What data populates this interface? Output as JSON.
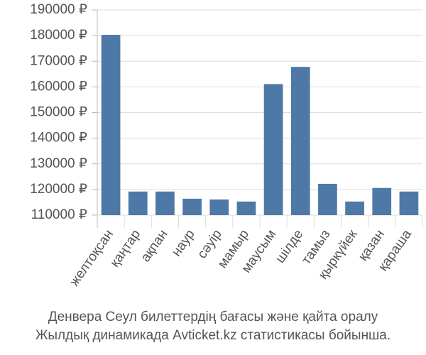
{
  "chart_data": {
    "type": "bar",
    "title": [
      "Денвера Сеул билеттердің бағасы және қайта оралу",
      "Жылдық динамикада Avticket.kz статистикасы бойынша."
    ],
    "categories": [
      "желтоқсан",
      "қаңтар",
      "ақпан",
      "наур",
      "сәуір",
      "мамыр",
      "маусым",
      "шілде",
      "тамыз",
      "қыркүйек",
      "қазан",
      "қараша"
    ],
    "values": [
      180300,
      119200,
      119200,
      116400,
      116100,
      115300,
      161100,
      167800,
      122200,
      115300,
      120600,
      119200
    ],
    "color": "#4e79a7",
    "ylim": [
      110000,
      190000
    ],
    "yticks": [
      {
        "value": 110000,
        "label": "110000 ₽"
      },
      {
        "value": 120000,
        "label": "120000 ₽"
      },
      {
        "value": 130000,
        "label": "130000 ₽"
      },
      {
        "value": 140000,
        "label": "140000 ₽"
      },
      {
        "value": 150000,
        "label": "150000 ₽"
      },
      {
        "value": 160000,
        "label": "160000 ₽"
      },
      {
        "value": 170000,
        "label": "170000 ₽"
      },
      {
        "value": 180000,
        "label": "180000 ₽"
      },
      {
        "value": 190000,
        "label": "190000 ₽"
      }
    ],
    "grid": true
  }
}
